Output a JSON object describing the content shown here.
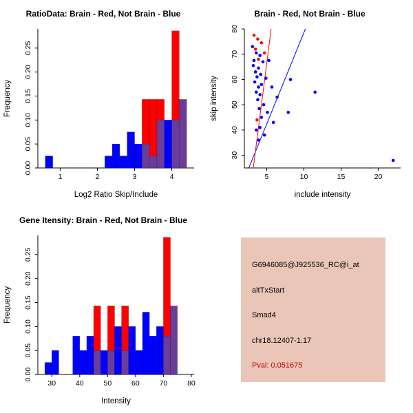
{
  "colors": {
    "red": "#ff0000",
    "blue": "#0000ff",
    "overlap": "#6a3d9a",
    "axis": "#000000"
  },
  "chart_data": [
    {
      "type": "histogram",
      "title": "RatioData: Brain - Red, Not Brain - Blue",
      "xlabel": "Log2 Ratio Skip/Include",
      "ylabel": "Frequency",
      "xlim": [
        0.4,
        4.6
      ],
      "ylim": [
        0,
        0.29
      ],
      "xticks": [
        1,
        2,
        3,
        4
      ],
      "yticks": [
        0,
        0.05,
        0.1,
        0.15,
        0.2,
        0.25
      ],
      "ytick_labels": [
        "0.00",
        "0.05",
        "0.10",
        "0.15",
        "0.20",
        "0.25"
      ],
      "bin_width": 0.2,
      "legend": [
        {
          "label": "Brain",
          "color": "red"
        },
        {
          "label": "Not Brain",
          "color": "blue"
        }
      ],
      "bins": [
        {
          "x": 0.6,
          "red": 0,
          "blue": 0.025
        },
        {
          "x": 2.2,
          "red": 0,
          "blue": 0.025
        },
        {
          "x": 2.4,
          "red": 0,
          "blue": 0.05
        },
        {
          "x": 2.6,
          "red": 0,
          "blue": 0.025
        },
        {
          "x": 2.8,
          "red": 0,
          "blue": 0.075
        },
        {
          "x": 3.0,
          "red": 0,
          "blue": 0.05
        },
        {
          "x": 3.2,
          "red": 0.143,
          "blue": 0.05
        },
        {
          "x": 3.4,
          "red": 0.143,
          "blue": 0.025
        },
        {
          "x": 3.6,
          "red": 0.143,
          "blue": 0.1
        },
        {
          "x": 3.8,
          "red": 0,
          "blue": 0.1
        },
        {
          "x": 4.0,
          "red": 0.286,
          "blue": 0.1
        },
        {
          "x": 4.2,
          "red": 0.143,
          "blue": 0.143
        }
      ]
    },
    {
      "type": "scatter",
      "title": "Brain - Red, Not Brain - Blue",
      "xlabel": "include intensity",
      "ylabel": "skip intensity",
      "xlim": [
        2,
        23
      ],
      "ylim": [
        25,
        80
      ],
      "xticks": [
        5,
        10,
        15,
        20
      ],
      "yticks": [
        30,
        40,
        50,
        60,
        70,
        80
      ],
      "lines": [
        {
          "color": "blue",
          "x1": 2.6,
          "y1": 25,
          "x2": 10.2,
          "y2": 80
        },
        {
          "color": "red",
          "x1": 3.2,
          "y1": 25,
          "x2": 5.6,
          "y2": 80
        }
      ],
      "series": [
        {
          "name": "Not Brain",
          "color": "blue",
          "points": [
            [
              3.1,
              73
            ],
            [
              3.6,
              70.5
            ],
            [
              4.1,
              69.5
            ],
            [
              3.3,
              67.5
            ],
            [
              4.5,
              67
            ],
            [
              5.3,
              67.5
            ],
            [
              3.2,
              65.5
            ],
            [
              3.9,
              64.5
            ],
            [
              3.5,
              63
            ],
            [
              4.2,
              62
            ],
            [
              3.7,
              61
            ],
            [
              4.9,
              60.5
            ],
            [
              8.2,
              60
            ],
            [
              3.4,
              59
            ],
            [
              4.3,
              58
            ],
            [
              3.9,
              57
            ],
            [
              5.7,
              57
            ],
            [
              3.6,
              55
            ],
            [
              11.5,
              55
            ],
            [
              4.1,
              54
            ],
            [
              6.4,
              53
            ],
            [
              3.8,
              52
            ],
            [
              4.6,
              50
            ],
            [
              4.0,
              48.5
            ],
            [
              5.1,
              47
            ],
            [
              7.9,
              47
            ],
            [
              4.3,
              45
            ],
            [
              5.9,
              43
            ],
            [
              4.1,
              41
            ],
            [
              3.6,
              40
            ],
            [
              4.7,
              38
            ],
            [
              3.9,
              36
            ],
            [
              22,
              28
            ]
          ]
        },
        {
          "name": "Brain",
          "color": "red",
          "points": [
            [
              3.3,
              77.5
            ],
            [
              3.8,
              76
            ],
            [
              4.3,
              74.5
            ],
            [
              3.5,
              72
            ],
            [
              4.7,
              70.5
            ],
            [
              3.9,
              68
            ],
            [
              3.7,
              44
            ]
          ]
        }
      ]
    },
    {
      "type": "histogram",
      "title": "Gene Itensity: Brain - Red, Not Brain - Blue",
      "xlabel": "Intensity",
      "ylabel": "Frequency",
      "xlim": [
        25,
        81
      ],
      "ylim": [
        0,
        0.29
      ],
      "xticks": [
        30,
        40,
        50,
        60,
        70,
        80
      ],
      "yticks": [
        0,
        0.05,
        0.1,
        0.15,
        0.2,
        0.25
      ],
      "ytick_labels": [
        "0.00",
        "0.05",
        "0.10",
        "0.15",
        "0.20",
        "0.25"
      ],
      "bin_width": 2.5,
      "legend": [
        {
          "label": "Brain",
          "color": "red"
        },
        {
          "label": "Not Brain",
          "color": "blue"
        }
      ],
      "bins": [
        {
          "x": 27.5,
          "red": 0,
          "blue": 0.025
        },
        {
          "x": 30,
          "red": 0,
          "blue": 0.05
        },
        {
          "x": 37.5,
          "red": 0,
          "blue": 0.08
        },
        {
          "x": 40,
          "red": 0,
          "blue": 0.05
        },
        {
          "x": 42.5,
          "red": 0,
          "blue": 0.08
        },
        {
          "x": 45,
          "red": 0.143,
          "blue": 0.05
        },
        {
          "x": 47.5,
          "red": 0,
          "blue": 0.05
        },
        {
          "x": 50,
          "red": 0.143,
          "blue": 0.05
        },
        {
          "x": 52.5,
          "red": 0,
          "blue": 0.1
        },
        {
          "x": 55,
          "red": 0.143,
          "blue": 0.05
        },
        {
          "x": 57.5,
          "red": 0,
          "blue": 0.1
        },
        {
          "x": 60,
          "red": 0,
          "blue": 0.05
        },
        {
          "x": 62.5,
          "red": 0,
          "blue": 0.13
        },
        {
          "x": 65,
          "red": 0,
          "blue": 0.08
        },
        {
          "x": 67.5,
          "red": 0,
          "blue": 0.1
        },
        {
          "x": 70,
          "red": 0.286,
          "blue": 0.08
        },
        {
          "x": 72.5,
          "red": 0.143,
          "blue": 0.143
        }
      ]
    }
  ],
  "info_panel": {
    "bg": "#e9c6b7",
    "pval_color": "#cc0000",
    "probe_id": "G6946085@J925536_RC@i_at",
    "event_type": "altTxStart",
    "gene": "Smad4",
    "location": "chr18.12407-1.17",
    "pval": "Pval: 0.051675"
  }
}
